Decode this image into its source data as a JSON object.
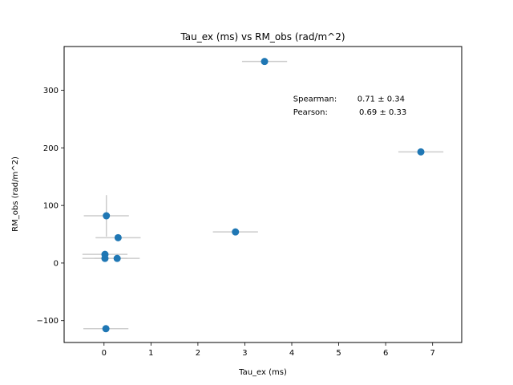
{
  "chart_data": {
    "type": "scatter",
    "title": "Tau_ex (ms) vs RM_obs (rad/m^2)",
    "xlabel": "Tau_ex (ms)",
    "ylabel": "RM_obs (rad/m^2)",
    "xlim": [
      -0.85,
      7.62
    ],
    "ylim": [
      -138,
      376
    ],
    "xticks": [
      0,
      1,
      2,
      3,
      4,
      5,
      6,
      7
    ],
    "xtick_labels": [
      "0",
      "1",
      "2",
      "3",
      "4",
      "5",
      "6",
      "7"
    ],
    "yticks": [
      -100,
      0,
      100,
      200,
      300
    ],
    "ytick_labels": [
      "−100",
      "0",
      "100",
      "200",
      "300"
    ],
    "grid": false,
    "points": [
      {
        "x": 3.42,
        "y": 350,
        "xerr": 0.48,
        "yerr": 0
      },
      {
        "x": 6.75,
        "y": 193,
        "xerr": 0.48,
        "yerr": 0
      },
      {
        "x": 0.05,
        "y": 82,
        "xerr": 0.48,
        "yerr": 36
      },
      {
        "x": 0.3,
        "y": 44,
        "xerr": 0.48,
        "yerr": 0
      },
      {
        "x": 2.8,
        "y": 54,
        "xerr": 0.48,
        "yerr": 0
      },
      {
        "x": 0.02,
        "y": 15,
        "xerr": 0.48,
        "yerr": 0
      },
      {
        "x": 0.02,
        "y": 8,
        "xerr": 0.48,
        "yerr": 0
      },
      {
        "x": 0.28,
        "y": 8,
        "xerr": 0.48,
        "yerr": 0
      },
      {
        "x": 0.04,
        "y": -114,
        "xerr": 0.48,
        "yerr": 0
      }
    ],
    "marker_color": "#1f77b4",
    "errorbar_color": "#cccccc",
    "annotations": [
      {
        "label": "Spearman:",
        "value": "0.71 ± 0.34",
        "x": 4.03,
        "y": 286
      },
      {
        "label": "Pearson:",
        "value": "0.69 ± 0.33",
        "x": 4.03,
        "y": 263
      }
    ]
  }
}
